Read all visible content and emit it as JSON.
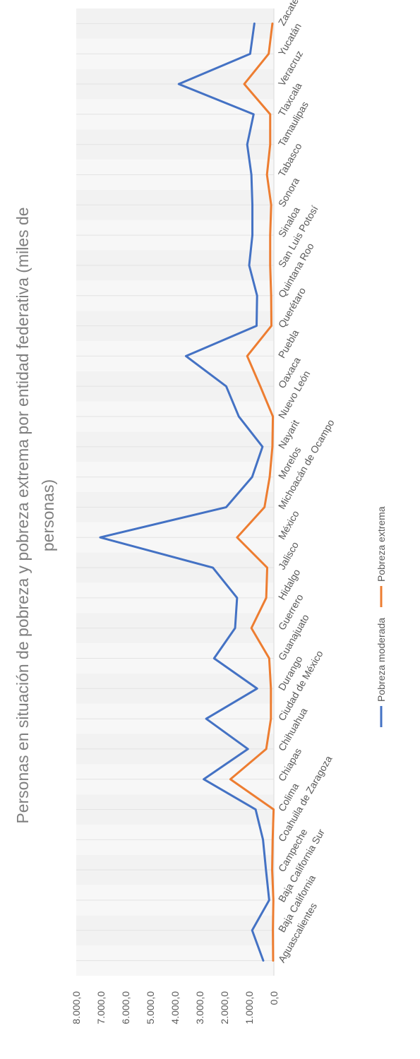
{
  "chart_data": {
    "type": "line",
    "title_line1": "Personas en situación de pobreza y pobreza extrema por entidad federativa (miles de",
    "title_line2": "personas)",
    "categories": [
      "Aguascalientes",
      "Baja California",
      "Baja California Sur",
      "Campeche",
      "Coahuila de Zaragoza",
      "Colima",
      "Chiapas",
      "Chihuahua",
      "Ciudad de México",
      "Durango",
      "Guanajuato",
      "Guerrero",
      "Hidalgo",
      "Jalisco",
      "México",
      "Michoacán de Ocampo",
      "Morelos",
      "Nayarit",
      "Nuevo León",
      "Oaxaca",
      "Puebla",
      "Querétaro",
      "Quintana Roo",
      "San Luis Potosí",
      "Sinaloa",
      "Sonora",
      "Tabasco",
      "Tamaulipas",
      "Tlaxcala",
      "Veracruz",
      "Yucatán",
      "Zacatecas"
    ],
    "series": [
      {
        "name": "Pobreza moderada",
        "color": "#4472c4",
        "values": [
          430,
          880,
          190,
          320,
          440,
          740,
          2840,
          1050,
          2740,
          680,
          2420,
          1570,
          1490,
          2470,
          7030,
          1930,
          880,
          460,
          1420,
          1930,
          3560,
          700,
          680,
          1000,
          870,
          870,
          910,
          1080,
          820,
          3850,
          960,
          790
        ]
      },
      {
        "name": "Pobreza extrema",
        "color": "#ed7d31",
        "values": [
          30,
          40,
          20,
          70,
          50,
          10,
          1760,
          310,
          120,
          120,
          190,
          910,
          310,
          270,
          1490,
          380,
          170,
          60,
          40,
          550,
          1080,
          100,
          110,
          150,
          150,
          110,
          280,
          150,
          150,
          1200,
          210,
          60
        ]
      }
    ],
    "yaxis": {
      "min": 0,
      "max": 8000,
      "step": 1000,
      "tick_labels": [
        "0,0",
        "1.000,0",
        "2.000,0",
        "3.000,0",
        "4.000,0",
        "5.000,0",
        "6.000,0",
        "7.000,0",
        "8.000,0"
      ]
    },
    "grid": true,
    "legend_position": "right"
  }
}
